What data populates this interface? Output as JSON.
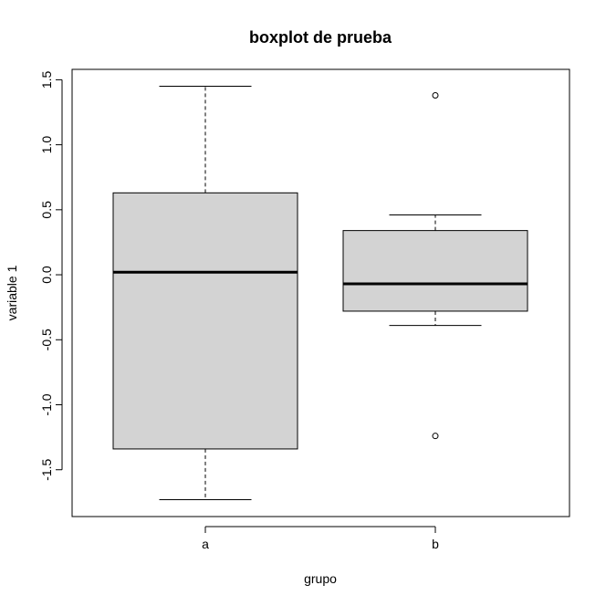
{
  "chart_data": {
    "type": "boxplot",
    "title": "boxplot de prueba",
    "xlabel": "grupo",
    "ylabel": "variable 1",
    "ylim": [
      -1.86,
      1.58
    ],
    "yticks": [
      -1.5,
      -1.0,
      -0.5,
      0.0,
      0.5,
      1.0,
      1.5
    ],
    "ytick_labels": [
      "-1.5",
      "-1.0",
      "-0.5",
      "0.0",
      "0.5",
      "1.0",
      "1.5"
    ],
    "grid": false,
    "box_fill": "#d3d3d3",
    "categories": [
      "a",
      "b"
    ],
    "boxes": [
      {
        "category": "a",
        "whisker_low": -1.73,
        "q1": -1.34,
        "median": 0.02,
        "q3": 0.63,
        "whisker_high": 1.45,
        "outliers": []
      },
      {
        "category": "b",
        "whisker_low": -0.39,
        "q1": -0.28,
        "median": -0.07,
        "q3": 0.34,
        "whisker_high": 0.46,
        "outliers": [
          1.38,
          -1.24
        ]
      }
    ]
  }
}
